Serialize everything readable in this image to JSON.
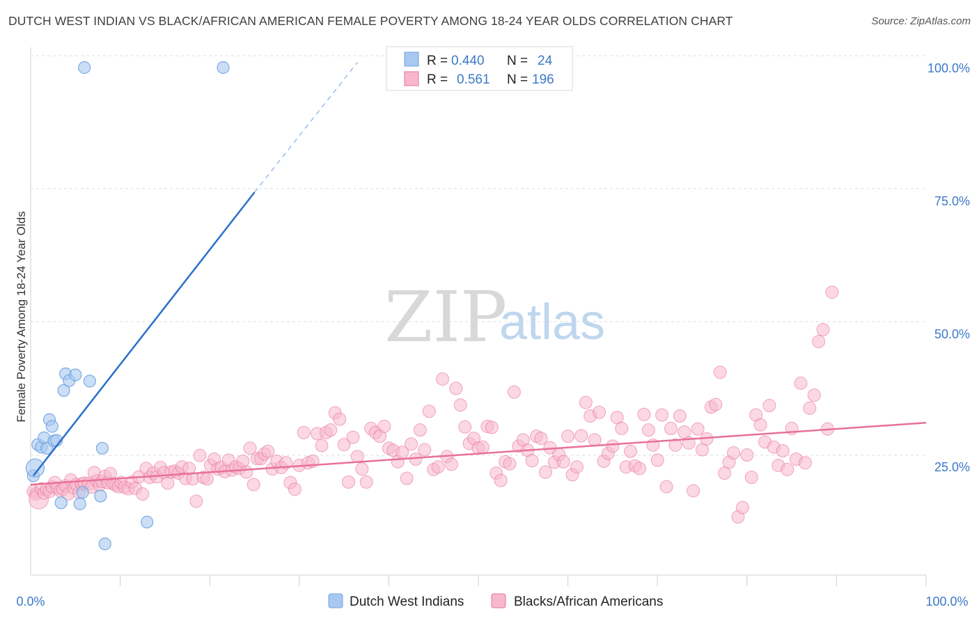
{
  "title": "DUTCH WEST INDIAN VS BLACK/AFRICAN AMERICAN FEMALE POVERTY AMONG 18-24 YEAR OLDS CORRELATION CHART",
  "source": "Source: ZipAtlas.com",
  "watermark": {
    "zip": "ZIP",
    "atlas": "atlas"
  },
  "legend": {
    "r_label": "R =",
    "n_label": "N =",
    "rows": [
      {
        "r": "0.440",
        "n": "24",
        "color": "#a8c8f0"
      },
      {
        "r": "0.561",
        "n": "196",
        "color": "#f8b8cc"
      }
    ]
  },
  "bottom_legend": [
    "Dutch West Indians",
    "Blacks/African Americans"
  ],
  "chart_data": {
    "type": "scatter",
    "title": "DUTCH WEST INDIAN VS BLACK/AFRICAN AMERICAN FEMALE POVERTY AMONG 18-24 YEAR OLDS CORRELATION CHART",
    "xlabel": "",
    "ylabel": "Female Poverty Among 18-24 Year Olds",
    "xlim": [
      0,
      100
    ],
    "ylim": [
      0,
      100
    ],
    "x_tick_labels": [
      "0.0%",
      "100.0%"
    ],
    "y_tick_labels": [
      "100.0%",
      "75.0%",
      "50.0%",
      "25.0%"
    ],
    "y_tick_values": [
      100,
      75,
      50,
      25
    ],
    "grid": true,
    "legend_position": "top-center",
    "series": [
      {
        "name": "Dutch West Indians",
        "color": "#6fa3e0",
        "fill": "#a8c8f0",
        "r": 0.44,
        "n": 24,
        "trend": {
          "x0": 0.3,
          "y0": 21.5,
          "x1": 25.0,
          "y1": 76.0,
          "dash_to_x": 36.5,
          "dash_to_y": 101.0
        },
        "points": [
          [
            0.3,
            21.5
          ],
          [
            0.5,
            23.0
          ],
          [
            0.8,
            27.5
          ],
          [
            1.2,
            27.0
          ],
          [
            1.5,
            28.8
          ],
          [
            1.8,
            26.8
          ],
          [
            2.1,
            32.3
          ],
          [
            2.4,
            31.0
          ],
          [
            2.6,
            28.2
          ],
          [
            2.9,
            28.3
          ],
          [
            3.4,
            16.3
          ],
          [
            3.7,
            37.9
          ],
          [
            3.9,
            41.1
          ],
          [
            4.3,
            39.8
          ],
          [
            5.0,
            40.9
          ],
          [
            5.5,
            16.1
          ],
          [
            5.8,
            18.3
          ],
          [
            6.0,
            100.0
          ],
          [
            6.6,
            39.7
          ],
          [
            7.8,
            17.6
          ],
          [
            8.0,
            26.8
          ],
          [
            8.3,
            8.4
          ],
          [
            13.0,
            12.6
          ],
          [
            21.5,
            100.0
          ]
        ]
      },
      {
        "name": "Blacks/African Americans",
        "color": "#e8709a",
        "fill": "#f8b8cc",
        "r": 0.561,
        "n": 196,
        "trend": {
          "x0": 0,
          "y0": 19.8,
          "x1": 100,
          "y1": 31.7
        },
        "points": [
          [
            0.3,
            18.5
          ],
          [
            0.6,
            18.0
          ],
          [
            0.9,
            17.0
          ],
          [
            1.2,
            19.0
          ],
          [
            1.5,
            18.2
          ],
          [
            1.8,
            18.9
          ],
          [
            2.1,
            18.5
          ],
          [
            2.4,
            19.4
          ],
          [
            2.7,
            20.2
          ],
          [
            3.0,
            19.1
          ],
          [
            3.3,
            18.6
          ],
          [
            3.6,
            18.9
          ],
          [
            3.9,
            19.6
          ],
          [
            4.2,
            18.0
          ],
          [
            4.5,
            20.7
          ],
          [
            4.8,
            19.2
          ],
          [
            5.1,
            19.8
          ],
          [
            5.4,
            18.3
          ],
          [
            5.7,
            19.9
          ],
          [
            6.0,
            20.1
          ],
          [
            6.5,
            20.0
          ],
          [
            6.8,
            19.3
          ],
          [
            7.1,
            22.1
          ],
          [
            7.4,
            20.5
          ],
          [
            7.7,
            19.7
          ],
          [
            8.0,
            20.4
          ],
          [
            8.3,
            21.4
          ],
          [
            8.6,
            20.2
          ],
          [
            8.9,
            21.9
          ],
          [
            9.2,
            20.0
          ],
          [
            9.5,
            19.7
          ],
          [
            9.8,
            19.4
          ],
          [
            10.1,
            20.2
          ],
          [
            10.5,
            19.3
          ],
          [
            10.9,
            19.0
          ],
          [
            11.3,
            20.3
          ],
          [
            11.7,
            19.1
          ],
          [
            12.1,
            21.3
          ],
          [
            12.5,
            18.0
          ],
          [
            12.9,
            22.9
          ],
          [
            13.3,
            21.2
          ],
          [
            13.7,
            22.0
          ],
          [
            14.1,
            21.3
          ],
          [
            14.5,
            23.1
          ],
          [
            14.9,
            22.1
          ],
          [
            15.3,
            20.1
          ],
          [
            15.7,
            22.2
          ],
          [
            16.1,
            22.4
          ],
          [
            16.5,
            22.0
          ],
          [
            16.9,
            23.2
          ],
          [
            17.3,
            21.0
          ],
          [
            17.7,
            22.9
          ],
          [
            18.1,
            20.9
          ],
          [
            18.5,
            16.6
          ],
          [
            18.9,
            25.4
          ],
          [
            19.3,
            21.2
          ],
          [
            19.7,
            20.9
          ],
          [
            20.1,
            23.5
          ],
          [
            20.5,
            24.7
          ],
          [
            20.9,
            22.8
          ],
          [
            21.3,
            23.1
          ],
          [
            21.7,
            22.3
          ],
          [
            22.1,
            24.5
          ],
          [
            22.5,
            22.6
          ],
          [
            22.9,
            23.2
          ],
          [
            23.3,
            22.9
          ],
          [
            23.7,
            24.3
          ],
          [
            24.1,
            22.2
          ],
          [
            24.5,
            26.8
          ],
          [
            24.9,
            19.8
          ],
          [
            25.3,
            24.8
          ],
          [
            25.7,
            24.8
          ],
          [
            26.1,
            25.7
          ],
          [
            26.5,
            26.2
          ],
          [
            27.0,
            22.8
          ],
          [
            27.5,
            24.3
          ],
          [
            28.0,
            23.1
          ],
          [
            28.5,
            24.0
          ],
          [
            29.0,
            20.2
          ],
          [
            29.5,
            18.9
          ],
          [
            30.0,
            23.5
          ],
          [
            30.5,
            29.8
          ],
          [
            31.0,
            24.0
          ],
          [
            31.5,
            24.3
          ],
          [
            32.0,
            29.6
          ],
          [
            32.5,
            27.3
          ],
          [
            33.0,
            29.8
          ],
          [
            33.5,
            30.3
          ],
          [
            34.0,
            33.6
          ],
          [
            34.5,
            32.4
          ],
          [
            35.0,
            27.5
          ],
          [
            35.5,
            20.3
          ],
          [
            36.0,
            28.9
          ],
          [
            36.5,
            25.2
          ],
          [
            37.0,
            22.8
          ],
          [
            37.5,
            20.3
          ],
          [
            38.0,
            30.6
          ],
          [
            38.5,
            29.8
          ],
          [
            39.0,
            29.1
          ],
          [
            39.5,
            31.0
          ],
          [
            40.0,
            26.8
          ],
          [
            40.5,
            26.4
          ],
          [
            41.0,
            24.2
          ],
          [
            41.5,
            26.0
          ],
          [
            42.0,
            21.0
          ],
          [
            42.5,
            27.6
          ],
          [
            43.0,
            24.7
          ],
          [
            43.5,
            30.3
          ],
          [
            44.0,
            26.5
          ],
          [
            44.5,
            33.9
          ],
          [
            45.0,
            22.7
          ],
          [
            45.5,
            23.2
          ],
          [
            46.0,
            40.1
          ],
          [
            46.5,
            25.2
          ],
          [
            47.0,
            23.7
          ],
          [
            47.5,
            38.3
          ],
          [
            48.0,
            35.1
          ],
          [
            48.5,
            30.9
          ],
          [
            49.0,
            27.7
          ],
          [
            49.5,
            28.7
          ],
          [
            50.0,
            26.8
          ],
          [
            50.5,
            27.0
          ],
          [
            51.0,
            31.0
          ],
          [
            51.5,
            30.8
          ],
          [
            52.0,
            22.0
          ],
          [
            52.5,
            20.6
          ],
          [
            53.0,
            24.2
          ],
          [
            53.5,
            23.8
          ],
          [
            54.0,
            37.6
          ],
          [
            54.5,
            27.2
          ],
          [
            55.0,
            28.4
          ],
          [
            55.5,
            26.4
          ],
          [
            56.0,
            24.4
          ],
          [
            56.5,
            29.1
          ],
          [
            57.0,
            28.7
          ],
          [
            57.5,
            22.2
          ],
          [
            58.0,
            26.9
          ],
          [
            58.5,
            24.1
          ],
          [
            59.0,
            25.6
          ],
          [
            59.5,
            24.2
          ],
          [
            60.0,
            29.1
          ],
          [
            60.5,
            21.7
          ],
          [
            61.0,
            23.2
          ],
          [
            61.5,
            29.2
          ],
          [
            62.0,
            35.6
          ],
          [
            62.5,
            33.0
          ],
          [
            63.0,
            28.4
          ],
          [
            63.5,
            33.7
          ],
          [
            64.0,
            24.3
          ],
          [
            64.5,
            25.8
          ],
          [
            65.0,
            27.2
          ],
          [
            65.5,
            32.7
          ],
          [
            66.0,
            30.6
          ],
          [
            66.5,
            23.2
          ],
          [
            67.0,
            26.2
          ],
          [
            67.5,
            23.4
          ],
          [
            68.0,
            22.9
          ],
          [
            68.5,
            33.3
          ],
          [
            69.0,
            30.3
          ],
          [
            69.5,
            27.4
          ],
          [
            70.0,
            24.5
          ],
          [
            70.5,
            33.2
          ],
          [
            71.0,
            19.4
          ],
          [
            71.5,
            30.6
          ],
          [
            72.0,
            27.4
          ],
          [
            72.5,
            33.0
          ],
          [
            73.0,
            29.9
          ],
          [
            73.5,
            27.8
          ],
          [
            74.0,
            18.6
          ],
          [
            74.5,
            30.5
          ],
          [
            75.0,
            26.5
          ],
          [
            75.5,
            28.6
          ],
          [
            76.0,
            34.7
          ],
          [
            76.5,
            35.2
          ],
          [
            77.0,
            41.4
          ],
          [
            77.5,
            22.0
          ],
          [
            78.0,
            24.1
          ],
          [
            78.5,
            25.9
          ],
          [
            79.0,
            13.6
          ],
          [
            79.5,
            15.4
          ],
          [
            80.0,
            25.5
          ],
          [
            80.5,
            21.2
          ],
          [
            81.0,
            33.2
          ],
          [
            81.5,
            31.3
          ],
          [
            82.0,
            28.0
          ],
          [
            82.5,
            35.0
          ],
          [
            83.0,
            27.0
          ],
          [
            83.5,
            23.5
          ],
          [
            84.0,
            26.3
          ],
          [
            84.5,
            22.7
          ],
          [
            85.0,
            30.6
          ],
          [
            85.5,
            24.7
          ],
          [
            86.0,
            39.3
          ],
          [
            86.5,
            24.0
          ],
          [
            87.0,
            34.5
          ],
          [
            87.5,
            37.0
          ],
          [
            88.0,
            47.3
          ],
          [
            88.5,
            49.6
          ],
          [
            89.0,
            30.5
          ],
          [
            89.5,
            56.8
          ]
        ]
      }
    ]
  }
}
